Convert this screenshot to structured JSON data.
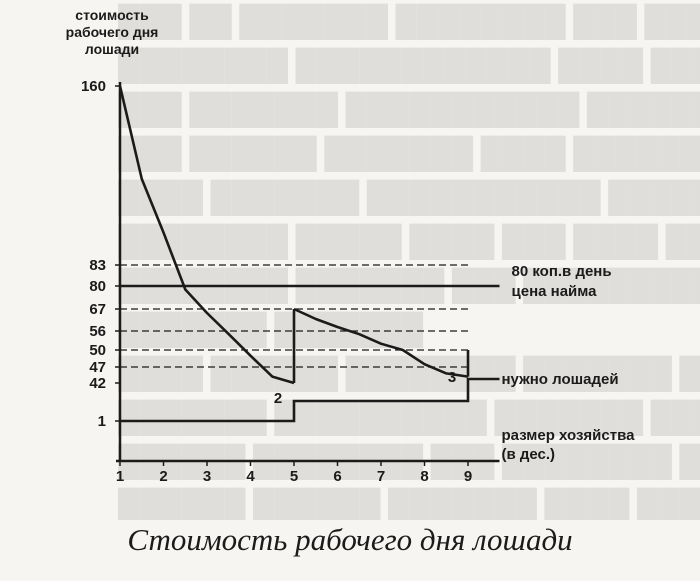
{
  "caption": "Стоимость рабочего дня лошади",
  "chart_data": {
    "type": "line",
    "ylabel": "стоимость рабочего дня лошади",
    "xlabel": "размер хозяйства (в дес.)",
    "y_ticks": [
      160,
      83,
      80,
      67,
      56,
      50,
      47,
      42,
      1
    ],
    "x_ticks": [
      1,
      2,
      3,
      4,
      5,
      6,
      7,
      8,
      9
    ],
    "xlim": [
      1,
      10
    ],
    "series": [
      {
        "name": "",
        "style": "curve",
        "segments": [
          [
            [
              1,
              160
            ],
            [
              1.5,
              120
            ],
            [
              2,
              97
            ],
            [
              2.5,
              78
            ],
            [
              3,
              65
            ],
            [
              3.5,
              55
            ],
            [
              4,
              49
            ],
            [
              4.5,
              44
            ],
            [
              5,
              42
            ]
          ],
          [
            [
              5,
              67
            ],
            [
              5.5,
              62
            ],
            [
              6,
              58
            ],
            [
              6.5,
              55
            ],
            [
              7,
              52
            ],
            [
              7.5,
              50
            ],
            [
              8,
              47.5
            ],
            [
              8.5,
              45
            ],
            [
              9,
              44
            ]
          ]
        ]
      },
      {
        "name": "80 коп.в день цена найма",
        "value": 80
      },
      {
        "name": "нужно лошадей",
        "steps": [
          [
            1,
            1
          ],
          [
            5,
            2
          ],
          [
            9,
            3
          ]
        ]
      }
    ],
    "dashed_levels": [
      83,
      67,
      56,
      50,
      47
    ],
    "line_labels": {
      "price_line": [
        "80 коп.в день",
        "цена найма"
      ],
      "horses": "нужно лошадей",
      "xaxis": [
        "размер хозяйства",
        "(в дес.)"
      ]
    },
    "step_labels": [
      "1",
      "2",
      "3"
    ]
  }
}
